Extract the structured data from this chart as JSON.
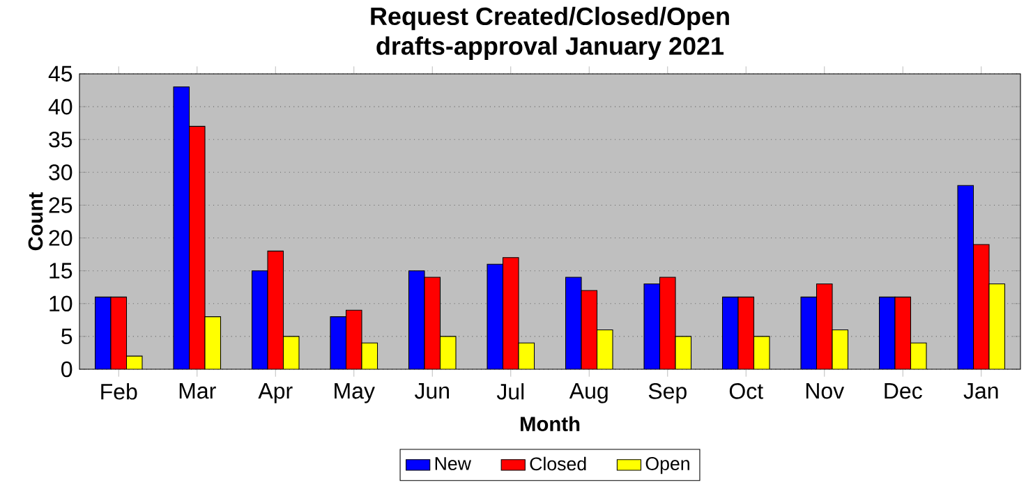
{
  "chart_data": {
    "type": "bar",
    "title": "Request Created/Closed/Open",
    "subtitle": "drafts-approval January 2021",
    "xlabel": "Month",
    "ylabel": "Count",
    "categories": [
      "Feb",
      "Mar",
      "Apr",
      "May",
      "Jun",
      "Jul",
      "Aug",
      "Sep",
      "Oct",
      "Nov",
      "Dec",
      "Jan"
    ],
    "series": [
      {
        "name": "New",
        "color": "#0000ff",
        "values": [
          11,
          43,
          15,
          8,
          15,
          16,
          14,
          13,
          11,
          11,
          11,
          28
        ]
      },
      {
        "name": "Closed",
        "color": "#ff0000",
        "values": [
          11,
          37,
          18,
          9,
          14,
          17,
          12,
          14,
          11,
          13,
          11,
          19
        ]
      },
      {
        "name": "Open",
        "color": "#ffff00",
        "values": [
          2,
          8,
          5,
          4,
          5,
          4,
          6,
          5,
          5,
          6,
          4,
          13
        ]
      }
    ],
    "ylim": [
      0,
      45
    ],
    "yticks": [
      0,
      5,
      10,
      15,
      20,
      25,
      30,
      35,
      40,
      45
    ],
    "grid": "y",
    "legend": "bottom"
  }
}
